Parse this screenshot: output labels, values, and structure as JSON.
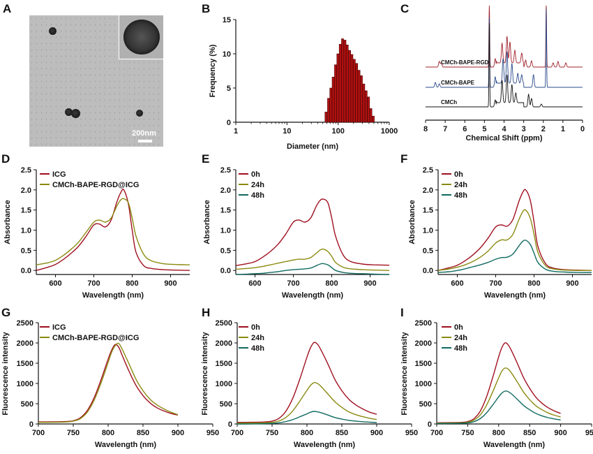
{
  "panel_letters": [
    "A",
    "B",
    "C",
    "D",
    "E",
    "F",
    "G",
    "H",
    "I"
  ],
  "tem": {
    "scale_label": "200nm"
  },
  "chart_data": [
    {
      "panel": "B",
      "type": "bar",
      "ylabel": "Frequency (%)",
      "xlabel": "Diameter (nm)",
      "x_scale": "log",
      "xlim": [
        1,
        1000
      ],
      "ylim": [
        0,
        15
      ],
      "xticks": [
        1,
        10,
        100,
        1000
      ],
      "xtick_labels": [
        "1",
        "10",
        "100",
        "1000"
      ],
      "yticks": [
        0,
        5,
        10,
        15
      ],
      "bar_color": "#b01010",
      "x": [
        58,
        65,
        72,
        80,
        89,
        99,
        110,
        122,
        136,
        151,
        168,
        186,
        207,
        230,
        256,
        285,
        317,
        353,
        393,
        437,
        486
      ],
      "values": [
        1.5,
        3.5,
        5.0,
        6.6,
        8.4,
        10.0,
        11.4,
        12.2,
        12.0,
        11.3,
        10.5,
        9.9,
        9.2,
        8.6,
        7.6,
        6.8,
        5.6,
        4.6,
        3.7,
        2.0,
        0.9
      ]
    },
    {
      "panel": "C",
      "type": "line",
      "xlabel": "Chemical Shift (ppm)",
      "xlim": [
        8,
        0
      ],
      "xticks": [
        8,
        7,
        6,
        5,
        4,
        3,
        2,
        1,
        0
      ],
      "series": [
        {
          "name": "CMCh-BAPE-RGD",
          "color": "#a0202a"
        },
        {
          "name": "CMCh-BAPE",
          "color": "#2a4a8a"
        },
        {
          "name": "CMCh",
          "color": "#111111"
        }
      ]
    },
    {
      "panel": "D",
      "type": "line",
      "xlabel": "Wavelength (nm)",
      "ylabel": "Absorbance",
      "xlim": [
        550,
        950
      ],
      "ylim": [
        -0.1,
        2.5
      ],
      "xticks": [
        600,
        700,
        800,
        900
      ],
      "yticks": [
        0.0,
        0.5,
        1.0,
        1.5,
        2.0,
        2.5
      ],
      "ytick_labels": [
        "0.0",
        "0.5",
        "1.0",
        "1.5",
        "2.0",
        "2.5"
      ],
      "x": [
        550,
        580,
        600,
        620,
        640,
        660,
        680,
        700,
        715,
        730,
        745,
        760,
        770,
        778,
        790,
        800,
        810,
        830,
        850,
        880,
        910,
        950
      ],
      "series": [
        {
          "name": "ICG",
          "color": "#a01020",
          "values": [
            0.0,
            0.08,
            0.15,
            0.27,
            0.42,
            0.6,
            0.85,
            1.13,
            1.15,
            1.08,
            1.25,
            1.7,
            1.93,
            2.0,
            1.65,
            1.0,
            0.45,
            0.12,
            0.05,
            0.02,
            0.01,
            0.0
          ]
        },
        {
          "name": "CMCh-BAPE-RGD@ICG",
          "color": "#8a8a10",
          "values": [
            0.14,
            0.19,
            0.25,
            0.37,
            0.52,
            0.7,
            0.95,
            1.2,
            1.25,
            1.2,
            1.3,
            1.6,
            1.75,
            1.78,
            1.68,
            1.3,
            0.85,
            0.4,
            0.24,
            0.17,
            0.15,
            0.14
          ]
        }
      ]
    },
    {
      "panel": "E",
      "type": "line",
      "xlabel": "Wavelength (nm)",
      "ylabel": "Absorbance",
      "xlim": [
        550,
        950
      ],
      "ylim": [
        -0.1,
        2.5
      ],
      "xticks": [
        600,
        700,
        800,
        900
      ],
      "yticks": [
        0.0,
        0.5,
        1.0,
        1.5,
        2.0,
        2.5
      ],
      "ytick_labels": [
        "0.0",
        "0.5",
        "1.0",
        "1.5",
        "2.0",
        "2.5"
      ],
      "x": [
        550,
        580,
        600,
        620,
        640,
        660,
        680,
        700,
        715,
        730,
        745,
        760,
        770,
        778,
        790,
        800,
        810,
        830,
        850,
        880,
        910,
        950
      ],
      "series": [
        {
          "name": "0h",
          "color": "#a01020",
          "values": [
            0.12,
            0.17,
            0.22,
            0.33,
            0.47,
            0.65,
            0.9,
            1.2,
            1.25,
            1.2,
            1.3,
            1.6,
            1.74,
            1.77,
            1.68,
            1.3,
            0.85,
            0.38,
            0.22,
            0.16,
            0.14,
            0.13
          ]
        },
        {
          "name": "24h",
          "color": "#8a8a10",
          "values": [
            0.03,
            0.05,
            0.07,
            0.1,
            0.14,
            0.18,
            0.22,
            0.26,
            0.28,
            0.28,
            0.32,
            0.43,
            0.51,
            0.53,
            0.47,
            0.35,
            0.2,
            0.08,
            0.04,
            0.02,
            0.01,
            0.0
          ]
        },
        {
          "name": "48h",
          "color": "#106a60",
          "values": [
            -0.1,
            -0.09,
            -0.08,
            -0.07,
            -0.05,
            -0.03,
            0.0,
            0.02,
            0.03,
            0.04,
            0.06,
            0.12,
            0.16,
            0.17,
            0.14,
            0.07,
            0.0,
            -0.05,
            -0.07,
            -0.08,
            -0.09,
            -0.1
          ]
        }
      ]
    },
    {
      "panel": "F",
      "type": "line",
      "xlabel": "Wavelength (nm)",
      "ylabel": "Absorbance",
      "xlim": [
        550,
        950
      ],
      "ylim": [
        -0.1,
        2.5
      ],
      "xticks": [
        600,
        700,
        800,
        900
      ],
      "yticks": [
        0.0,
        0.5,
        1.0,
        1.5,
        2.0,
        2.5
      ],
      "ytick_labels": [
        "0.0",
        "0.5",
        "1.0",
        "1.5",
        "2.0",
        "2.5"
      ],
      "x": [
        550,
        580,
        600,
        620,
        640,
        660,
        680,
        700,
        715,
        730,
        745,
        760,
        770,
        778,
        790,
        800,
        810,
        830,
        850,
        880,
        910,
        950
      ],
      "series": [
        {
          "name": "0h",
          "color": "#a01020",
          "values": [
            0.0,
            0.07,
            0.13,
            0.24,
            0.38,
            0.56,
            0.8,
            1.08,
            1.13,
            1.1,
            1.27,
            1.7,
            1.93,
            2.0,
            1.75,
            1.2,
            0.6,
            0.17,
            0.06,
            0.02,
            0.01,
            0.0
          ]
        },
        {
          "name": "24h",
          "color": "#8a8a10",
          "values": [
            0.0,
            0.04,
            0.08,
            0.14,
            0.22,
            0.33,
            0.48,
            0.68,
            0.76,
            0.76,
            0.9,
            1.25,
            1.45,
            1.5,
            1.3,
            0.9,
            0.45,
            0.12,
            0.04,
            0.01,
            0.0,
            0.0
          ]
        },
        {
          "name": "48h",
          "color": "#106a60",
          "values": [
            -0.05,
            -0.03,
            0.0,
            0.04,
            0.09,
            0.14,
            0.2,
            0.28,
            0.32,
            0.33,
            0.41,
            0.6,
            0.72,
            0.75,
            0.65,
            0.43,
            0.2,
            0.03,
            -0.02,
            -0.04,
            -0.05,
            -0.05
          ]
        }
      ]
    },
    {
      "panel": "G",
      "type": "line",
      "xlabel": "Wavelength (nm)",
      "ylabel": "Fluorescence intensity",
      "xlim": [
        700,
        950
      ],
      "ylim": [
        0,
        2500
      ],
      "xticks": [
        700,
        750,
        800,
        850,
        900,
        950
      ],
      "yticks": [
        0,
        500,
        1000,
        1500,
        2000,
        2500
      ],
      "x": [
        700,
        720,
        740,
        750,
        760,
        770,
        780,
        790,
        800,
        805,
        810,
        815,
        820,
        830,
        840,
        850,
        860,
        870,
        880,
        890,
        900
      ],
      "series": [
        {
          "name": "ICG",
          "color": "#a01020",
          "values": [
            50,
            52,
            60,
            80,
            150,
            330,
            650,
            1100,
            1600,
            1820,
            1960,
            1900,
            1700,
            1300,
            950,
            700,
            520,
            400,
            320,
            260,
            220
          ]
        },
        {
          "name": "CMCh-BAPE-RGD@ICG",
          "color": "#8a8a10",
          "values": [
            40,
            42,
            50,
            70,
            130,
            290,
            590,
            1020,
            1520,
            1770,
            1930,
            1990,
            1850,
            1480,
            1100,
            820,
            610,
            470,
            370,
            290,
            230
          ]
        }
      ]
    },
    {
      "panel": "H",
      "type": "line",
      "xlabel": "Wavelength (nm)",
      "ylabel": "Fluorescence intensity",
      "xlim": [
        700,
        950
      ],
      "ylim": [
        0,
        2500
      ],
      "xticks": [
        700,
        750,
        800,
        850,
        900,
        950
      ],
      "yticks": [
        0,
        500,
        1000,
        1500,
        2000,
        2500
      ],
      "x": [
        700,
        720,
        740,
        750,
        760,
        770,
        780,
        790,
        800,
        805,
        810,
        815,
        820,
        830,
        840,
        850,
        860,
        870,
        880,
        890,
        900
      ],
      "series": [
        {
          "name": "0h",
          "color": "#a01020",
          "values": [
            40,
            42,
            50,
            70,
            140,
            320,
            650,
            1120,
            1650,
            1880,
            2010,
            1970,
            1830,
            1480,
            1100,
            820,
            610,
            470,
            370,
            290,
            240
          ]
        },
        {
          "name": "24h",
          "color": "#8a8a10",
          "values": [
            20,
            22,
            30,
            40,
            75,
            165,
            330,
            570,
            830,
            950,
            1020,
            1000,
            930,
            740,
            550,
            410,
            300,
            230,
            180,
            140,
            110
          ]
        },
        {
          "name": "48h",
          "color": "#106a60",
          "values": [
            0,
            2,
            8,
            15,
            30,
            60,
            110,
            180,
            250,
            290,
            310,
            300,
            280,
            220,
            160,
            120,
            90,
            70,
            55,
            45,
            35
          ]
        }
      ]
    },
    {
      "panel": "I",
      "type": "line",
      "xlabel": "Wavelength (nm)",
      "ylabel": "Fluorescence intensity",
      "xlim": [
        700,
        950
      ],
      "ylim": [
        0,
        2500
      ],
      "xticks": [
        700,
        750,
        800,
        850,
        900,
        950
      ],
      "yticks": [
        0,
        500,
        1000,
        1500,
        2000,
        2500
      ],
      "x": [
        700,
        720,
        740,
        750,
        760,
        770,
        780,
        790,
        800,
        805,
        810,
        815,
        820,
        830,
        840,
        850,
        860,
        870,
        880,
        890,
        900
      ],
      "series": [
        {
          "name": "0h",
          "color": "#a01020",
          "values": [
            30,
            32,
            40,
            60,
            130,
            310,
            650,
            1130,
            1660,
            1880,
            2000,
            1960,
            1830,
            1500,
            1150,
            880,
            660,
            510,
            400,
            320,
            260
          ]
        },
        {
          "name": "24h",
          "color": "#8a8a10",
          "values": [
            20,
            22,
            30,
            45,
            95,
            220,
            450,
            780,
            1140,
            1300,
            1380,
            1360,
            1270,
            1040,
            790,
            600,
            450,
            350,
            270,
            215,
            175
          ]
        },
        {
          "name": "48h",
          "color": "#106a60",
          "values": [
            10,
            12,
            18,
            28,
            55,
            130,
            265,
            460,
            670,
            760,
            810,
            800,
            750,
            610,
            460,
            350,
            260,
            200,
            155,
            125,
            100
          ]
        }
      ]
    }
  ]
}
